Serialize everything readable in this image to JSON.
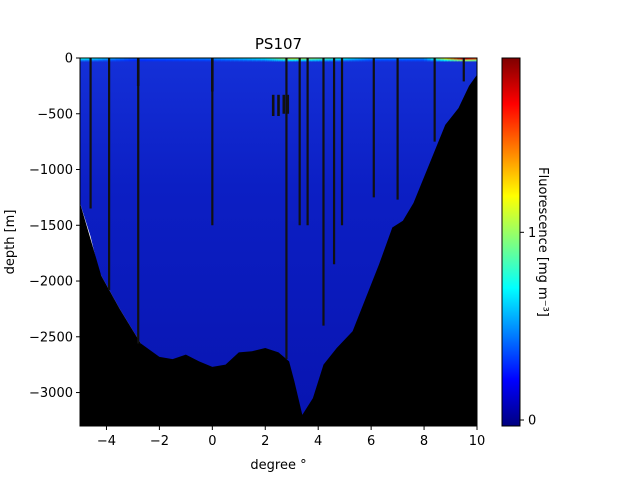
{
  "chart_data": {
    "type": "heatmap",
    "title": "PS107",
    "xlabel": "degree °",
    "ylabel": "depth [m]",
    "xlim": [
      -5,
      10
    ],
    "ylim": [
      -3300,
      0
    ],
    "x_ticks": [
      -4,
      -2,
      0,
      2,
      4,
      6,
      8,
      10
    ],
    "x_tick_labels": [
      "−4",
      "−2",
      "0",
      "2",
      "4",
      "6",
      "8",
      "10"
    ],
    "y_ticks": [
      0,
      -500,
      -1000,
      -1500,
      -2000,
      -2500,
      -3000
    ],
    "y_tick_labels": [
      "0",
      "−500",
      "−1000",
      "−1500",
      "−2000",
      "−2500",
      "−3000"
    ],
    "colorbar": {
      "label": "Fluorescence [mg m⁻³]",
      "colormap": "jet",
      "range": [
        0,
        1.9
      ],
      "ticks": [
        0,
        1
      ],
      "tick_labels": [
        "0",
        "1"
      ]
    },
    "background_value": 0.1,
    "surface_layer": {
      "depth": 30,
      "profile": [
        {
          "x": -5,
          "value": 0.75
        },
        {
          "x": -3,
          "value": 0.4
        },
        {
          "x": 0,
          "value": 0.5
        },
        {
          "x": 2,
          "value": 0.7
        },
        {
          "x": 3,
          "value": 1.1
        },
        {
          "x": 4.5,
          "value": 0.8
        },
        {
          "x": 6,
          "value": 0.5
        },
        {
          "x": 8,
          "value": 0.5
        },
        {
          "x": 9.5,
          "value": 1.7
        },
        {
          "x": 10,
          "value": 1.5
        }
      ]
    },
    "bathymetry": [
      {
        "x": -5,
        "depth": -1300
      },
      {
        "x": -4.2,
        "depth": -1950
      },
      {
        "x": -3.5,
        "depth": -2250
      },
      {
        "x": -2.7,
        "depth": -2560
      },
      {
        "x": -2,
        "depth": -2680
      },
      {
        "x": -1.5,
        "depth": -2700
      },
      {
        "x": -1,
        "depth": -2660
      },
      {
        "x": -0.5,
        "depth": -2720
      },
      {
        "x": 0,
        "depth": -2770
      },
      {
        "x": 0.5,
        "depth": -2750
      },
      {
        "x": 1,
        "depth": -2640
      },
      {
        "x": 1.5,
        "depth": -2630
      },
      {
        "x": 2,
        "depth": -2600
      },
      {
        "x": 2.5,
        "depth": -2640
      },
      {
        "x": 2.9,
        "depth": -2720
      },
      {
        "x": 3.1,
        "depth": -2900
      },
      {
        "x": 3.4,
        "depth": -3200
      },
      {
        "x": 3.8,
        "depth": -3050
      },
      {
        "x": 4.2,
        "depth": -2750
      },
      {
        "x": 4.7,
        "depth": -2600
      },
      {
        "x": 5.3,
        "depth": -2450
      },
      {
        "x": 5.8,
        "depth": -2150
      },
      {
        "x": 6.3,
        "depth": -1850
      },
      {
        "x": 6.8,
        "depth": -1520
      },
      {
        "x": 7.2,
        "depth": -1460
      },
      {
        "x": 7.6,
        "depth": -1300
      },
      {
        "x": 8.2,
        "depth": -950
      },
      {
        "x": 8.8,
        "depth": -600
      },
      {
        "x": 9.3,
        "depth": -450
      },
      {
        "x": 9.7,
        "depth": -250
      },
      {
        "x": 10,
        "depth": -150
      }
    ],
    "data_gap": [
      {
        "x": -5,
        "depth": -1300
      },
      {
        "x": -4.6,
        "depth": -1600
      },
      {
        "x": -4.3,
        "depth": -1900
      },
      {
        "x": -4,
        "depth": -2150
      },
      {
        "x": -3.6,
        "depth": -2350
      },
      {
        "x": -3.2,
        "depth": -2450
      },
      {
        "x": -2.9,
        "depth": -2560
      },
      {
        "x": -2.7,
        "depth": -2560
      },
      {
        "x": -3.5,
        "depth": -2250
      },
      {
        "x": -4.2,
        "depth": -1950
      },
      {
        "x": -5,
        "depth": -1500
      }
    ],
    "casts": [
      {
        "x": -4.6,
        "bottom": -1350
      },
      {
        "x": -3.9,
        "bottom": -2080
      },
      {
        "x": -2.8,
        "bottom": -2560
      },
      {
        "x": 0.0,
        "bottom": -1500
      },
      {
        "x": 2.8,
        "bottom": -2700
      },
      {
        "x": 4.2,
        "bottom": -2400
      },
      {
        "x": 4.6,
        "bottom": -1850
      },
      {
        "x": 4.9,
        "bottom": -1500
      },
      {
        "x": 6.1,
        "bottom": -1250
      },
      {
        "x": 7.0,
        "bottom": -1270
      },
      {
        "x": 8.4,
        "bottom": -750
      },
      {
        "x": 9.5,
        "bottom": -210
      },
      {
        "x": 3.3,
        "bottom": -1500
      },
      {
        "x": 3.6,
        "bottom": -1500
      }
    ],
    "shallow_casts": [
      {
        "x": -2.8,
        "bottom": -250
      },
      {
        "x": 0.0,
        "bottom": -300
      },
      {
        "x": 2.3,
        "bottom": -520
      },
      {
        "x": 2.5,
        "bottom": -520
      },
      {
        "x": 2.7,
        "bottom": -500
      },
      {
        "x": 2.85,
        "bottom": -500
      }
    ]
  }
}
